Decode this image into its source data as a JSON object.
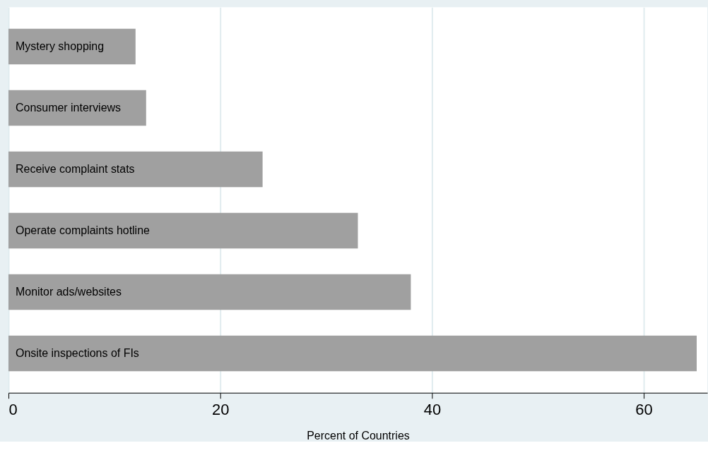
{
  "chart_data": {
    "type": "bar",
    "orientation": "horizontal",
    "xlabel": "Percent of Countries",
    "categories": [
      "Mystery shopping",
      "Consumer interviews",
      "Receive complaint stats",
      "Operate complaints hotline",
      "Monitor ads/websites",
      "Onsite inspections of FIs"
    ],
    "values": [
      12,
      13,
      24,
      33,
      38,
      65
    ],
    "color": "#a0a0a0",
    "xlim": [
      0,
      66
    ],
    "xticks": [
      0,
      20,
      40,
      60
    ],
    "grid": "x"
  }
}
